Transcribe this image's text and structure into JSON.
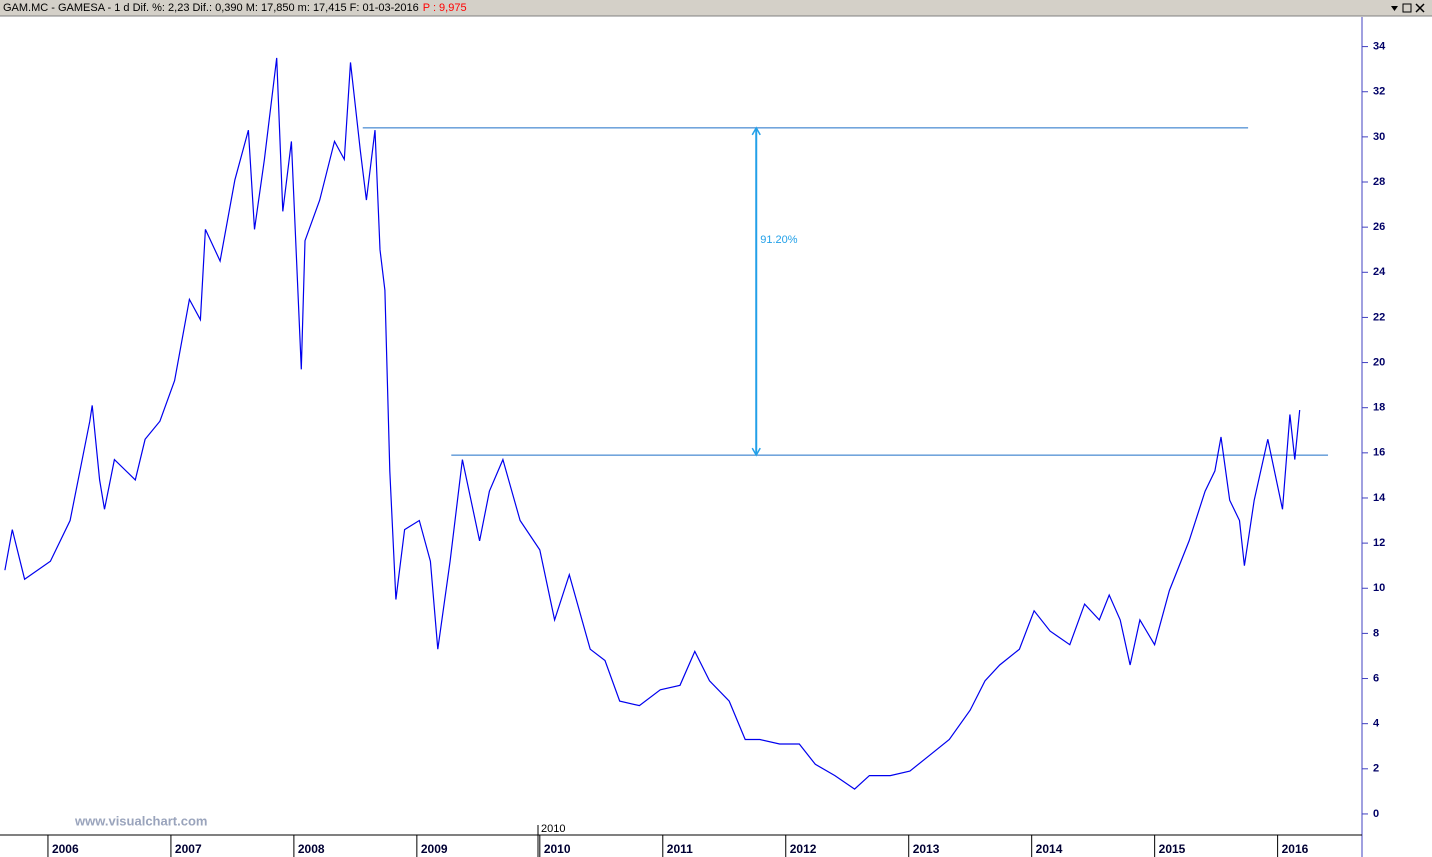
{
  "chart_data": {
    "type": "line",
    "title": "GAM.MC - GAMESA - 1 d Dif. %: 2,23 Dif.: 0,390 M: 17,850 m: 17,415 F: 01-03-2016",
    "title_extra": "P : 9,975",
    "watermark": "www.visualchart.com",
    "x_cursor_label": "2010",
    "color": "#0000ee",
    "x": [
      2005.65,
      2005.71,
      2005.81,
      2006.02,
      2006.18,
      2006.34,
      2006.36,
      2006.42,
      2006.46,
      2006.54,
      2006.71,
      2006.79,
      2006.91,
      2007.03,
      2007.15,
      2007.24,
      2007.28,
      2007.4,
      2007.52,
      2007.63,
      2007.68,
      2007.76,
      2007.86,
      2007.91,
      2007.98,
      2008.06,
      2008.09,
      2008.21,
      2008.33,
      2008.41,
      2008.46,
      2008.54,
      2008.59,
      2008.66,
      2008.7,
      2008.74,
      2008.78,
      2008.83,
      2008.9,
      2009.02,
      2009.11,
      2009.17,
      2009.27,
      2009.37,
      2009.51,
      2009.59,
      2009.7,
      2009.84,
      2010.0,
      2010.12,
      2010.24,
      2010.41,
      2010.53,
      2010.65,
      2010.81,
      2010.98,
      2011.14,
      2011.26,
      2011.38,
      2011.54,
      2011.67,
      2011.79,
      2011.95,
      2012.11,
      2012.24,
      2012.4,
      2012.56,
      2012.68,
      2012.85,
      2013.01,
      2013.17,
      2013.33,
      2013.5,
      2013.62,
      2013.74,
      2013.9,
      2014.02,
      2014.15,
      2014.31,
      2014.43,
      2014.55,
      2014.63,
      2014.72,
      2014.8,
      2014.88,
      2015.0,
      2015.12,
      2015.28,
      2015.41,
      2015.49,
      2015.54,
      2015.61,
      2015.69,
      2015.73,
      2015.81,
      2015.92,
      2016.04,
      2016.1,
      2016.14,
      2016.18
    ],
    "values": [
      10.8,
      12.6,
      10.4,
      11.2,
      13,
      17.4,
      18.1,
      14.8,
      13.5,
      15.7,
      14.8,
      16.6,
      17.4,
      19.2,
      22.8,
      21.9,
      25.9,
      24.5,
      28.1,
      30.3,
      25.9,
      29,
      33.5,
      26.7,
      29.8,
      19.7,
      25.4,
      27.2,
      29.8,
      29,
      33.3,
      29.4,
      27.2,
      30.3,
      25,
      23.2,
      15.2,
      9.5,
      12.6,
      13,
      11.2,
      7.3,
      11.2,
      15.7,
      12.1,
      14.3,
      15.7,
      13,
      11.7,
      8.6,
      10.6,
      7.3,
      6.8,
      5,
      4.8,
      5.5,
      5.7,
      7.2,
      5.9,
      5,
      3.3,
      3.3,
      3.1,
      3.1,
      2.2,
      1.7,
      1.1,
      1.7,
      1.7,
      1.9,
      2.6,
      3.3,
      4.6,
      5.9,
      6.6,
      7.3,
      9,
      8.1,
      7.5,
      9.3,
      8.6,
      9.7,
      8.6,
      6.6,
      8.6,
      7.5,
      9.9,
      12.1,
      14.3,
      15.2,
      16.7,
      13.9,
      13,
      11,
      13.9,
      16.6,
      13.5,
      17.7,
      15.7,
      17.9
    ],
    "xlim": [
      2005.61,
      2016.67
    ],
    "xticks": [
      2006,
      2007,
      2008,
      2009,
      2010,
      2011,
      2012,
      2013,
      2014,
      2015,
      2016
    ],
    "ylim": [
      -0.8,
      35.4
    ],
    "yticks": [
      0,
      2,
      4,
      6,
      8,
      10,
      12,
      14,
      16,
      18,
      20,
      22,
      24,
      26,
      28,
      30,
      32,
      34
    ],
    "levels": [
      {
        "value": 30.4,
        "x": [
          2008.56,
          2015.76
        ]
      },
      {
        "value": 15.9,
        "x": [
          2009.28,
          2016.41
        ]
      }
    ],
    "level_color": "#1e6fc8",
    "arrow": {
      "x": 2011.76,
      "label": "91.20%",
      "color": "#22a0e8"
    }
  }
}
